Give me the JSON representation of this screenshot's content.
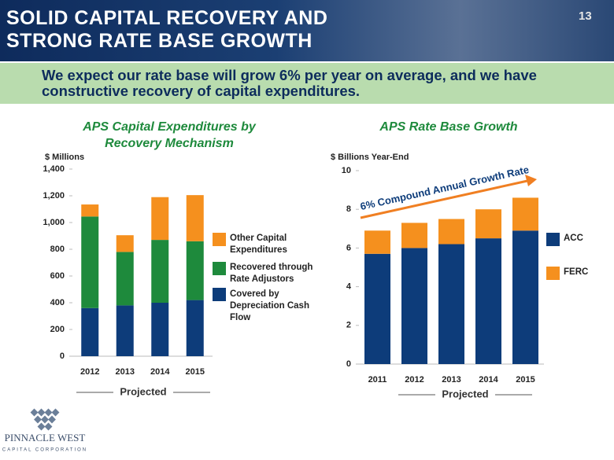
{
  "slide": {
    "title": "SOLID CAPITAL RECOVERY AND STRONG RATE BASE GROWTH",
    "page_number": "13",
    "subtitle": "We expect our rate base will grow 6% per year on average, and we have constructive recovery of capital expenditures.",
    "logo_name": "PINNACLE WEST",
    "logo_tagline": "CAPITAL CORPORATION"
  },
  "chart_data": [
    {
      "type": "stacked_bar",
      "title": "APS Capital Expenditures by Recovery Mechanism",
      "y_label": "$ Millions",
      "categories": [
        "2012",
        "2013",
        "2014",
        "2015"
      ],
      "series": [
        {
          "name": "Covered by Depreciation Cash Flow",
          "color": "#0d3c7a",
          "values": [
            360,
            380,
            400,
            420
          ]
        },
        {
          "name": "Recovered through Rate Adjustors",
          "color": "#1e8a3c",
          "values": [
            685,
            400,
            470,
            440
          ]
        },
        {
          "name": "Other Capital Expenditures",
          "color": "#f5901e",
          "values": [
            90,
            125,
            320,
            345
          ]
        }
      ],
      "ylim": [
        0,
        1400
      ],
      "yticks": [
        0,
        200,
        400,
        600,
        800,
        {
          "value": 1000,
          "label": "1,000"
        },
        {
          "value": 1200,
          "label": "1,200"
        },
        {
          "value": 1400,
          "label": "1,400"
        }
      ],
      "annotation": "Projected"
    },
    {
      "type": "stacked_bar",
      "title": "APS Rate Base Growth",
      "y_label": "$ Billions Year-End",
      "categories": [
        "2011",
        "2012",
        "2013",
        "2014",
        "2015"
      ],
      "series": [
        {
          "name": "ACC",
          "color": "#0d3c7a",
          "values": [
            5.7,
            6.0,
            6.2,
            6.5,
            6.9
          ]
        },
        {
          "name": "FERC",
          "color": "#f5901e",
          "values": [
            1.2,
            1.3,
            1.3,
            1.5,
            1.7
          ]
        }
      ],
      "ylim": [
        0,
        10
      ],
      "yticks": [
        0,
        2,
        4,
        6,
        8,
        10
      ],
      "annotation": "Projected",
      "growth_label": "6% Compound Annual Growth Rate"
    }
  ]
}
